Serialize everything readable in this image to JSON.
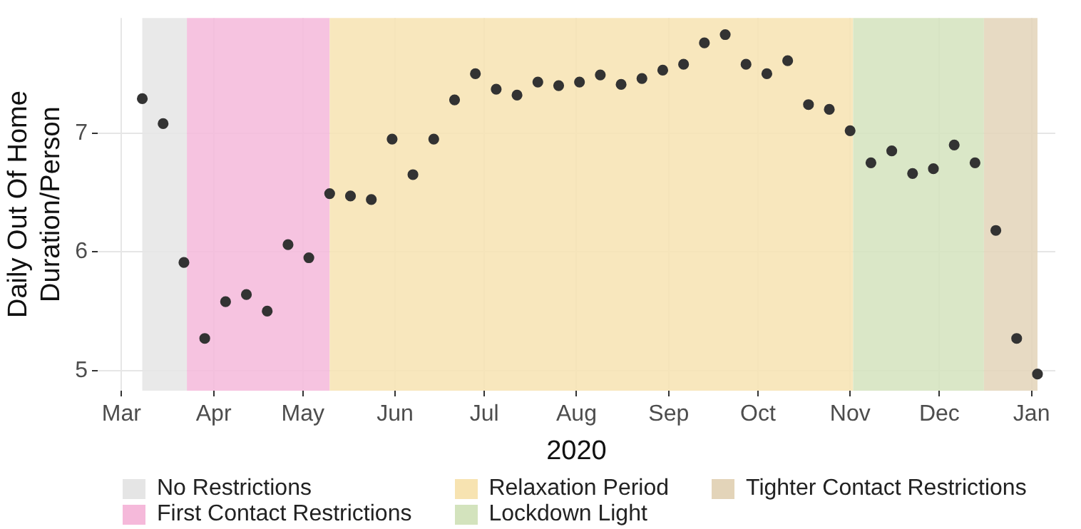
{
  "chart_data": {
    "type": "scatter",
    "xlabel": "2020",
    "ylabel": "Daily Out Of Home\nDuration/Person",
    "x": [
      "2020-03-08",
      "2020-03-15",
      "2020-03-22",
      "2020-03-29",
      "2020-04-05",
      "2020-04-12",
      "2020-04-19",
      "2020-04-26",
      "2020-05-03",
      "2020-05-10",
      "2020-05-17",
      "2020-05-24",
      "2020-05-31",
      "2020-06-07",
      "2020-06-14",
      "2020-06-21",
      "2020-06-28",
      "2020-07-05",
      "2020-07-12",
      "2020-07-19",
      "2020-07-26",
      "2020-08-02",
      "2020-08-09",
      "2020-08-16",
      "2020-08-23",
      "2020-08-30",
      "2020-09-06",
      "2020-09-13",
      "2020-09-20",
      "2020-09-27",
      "2020-10-04",
      "2020-10-11",
      "2020-10-18",
      "2020-10-25",
      "2020-11-01",
      "2020-11-08",
      "2020-11-15",
      "2020-11-22",
      "2020-11-29",
      "2020-12-06",
      "2020-12-13",
      "2020-12-20",
      "2020-12-27",
      "2021-01-03"
    ],
    "series": [
      {
        "color": "#333333",
        "values": [
          7.29,
          7.08,
          5.91,
          5.27,
          5.58,
          5.64,
          5.5,
          6.06,
          5.95,
          6.49,
          6.47,
          6.44,
          6.95,
          6.65,
          6.95,
          7.28,
          7.5,
          7.37,
          7.32,
          7.43,
          7.4,
          7.43,
          7.49,
          7.41,
          7.46,
          7.53,
          7.58,
          7.76,
          7.83,
          7.58,
          7.5,
          7.61,
          7.24,
          7.2,
          7.02,
          6.75,
          6.85,
          6.66,
          6.7,
          6.9,
          6.75,
          6.18,
          5.27,
          4.97
        ]
      }
    ],
    "xlim": [
      "2020-02-22",
      "2021-01-09"
    ],
    "xticks": [
      {
        "value": "2020-03-01",
        "label": "Mar"
      },
      {
        "value": "2020-04-01",
        "label": "Apr"
      },
      {
        "value": "2020-05-01",
        "label": "May"
      },
      {
        "value": "2020-06-01",
        "label": "Jun"
      },
      {
        "value": "2020-07-01",
        "label": "Jul"
      },
      {
        "value": "2020-08-01",
        "label": "Aug"
      },
      {
        "value": "2020-09-01",
        "label": "Sep"
      },
      {
        "value": "2020-10-01",
        "label": "Oct"
      },
      {
        "value": "2020-11-01",
        "label": "Nov"
      },
      {
        "value": "2020-12-01",
        "label": "Dec"
      },
      {
        "value": "2021-01-01",
        "label": "Jan"
      }
    ],
    "ylim": [
      4.83,
      7.97
    ],
    "yticks": [
      5,
      6,
      7
    ],
    "bands": [
      {
        "axis": "x",
        "from": "2020-03-08",
        "to": "2020-03-23",
        "label": "No Restrictions",
        "color": "#e5e5e5"
      },
      {
        "axis": "x",
        "from": "2020-03-23",
        "to": "2020-05-10",
        "label": "First Contact Restrictions",
        "color": "#f5b9da"
      },
      {
        "axis": "x",
        "from": "2020-05-10",
        "to": "2020-11-02",
        "label": "Relaxation Period",
        "color": "#f7e3b1"
      },
      {
        "axis": "x",
        "from": "2020-11-02",
        "to": "2020-12-16",
        "label": "Lockdown Light",
        "color": "#d3e3bd"
      },
      {
        "axis": "x",
        "from": "2020-12-16",
        "to": "2021-01-03",
        "label": "Tighter Contact Restrictions",
        "color": "#e3d4b9"
      }
    ],
    "grid": true,
    "legend": "bottom",
    "marker": "circle"
  }
}
